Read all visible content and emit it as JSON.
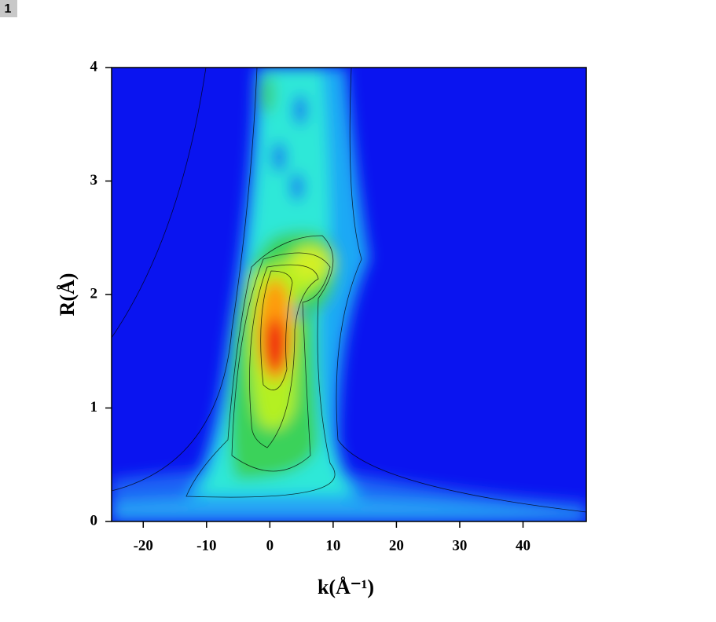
{
  "panel_label": "1",
  "chart_data": {
    "type": "contour",
    "x_label": "k(Å⁻¹)",
    "y_label": "R(Å)",
    "xlim": [
      -25,
      50
    ],
    "ylim": [
      0,
      4
    ],
    "xticks": [
      -20,
      -10,
      0,
      10,
      20,
      30,
      40
    ],
    "yticks": [
      0,
      1,
      2,
      3,
      4
    ]
  }
}
